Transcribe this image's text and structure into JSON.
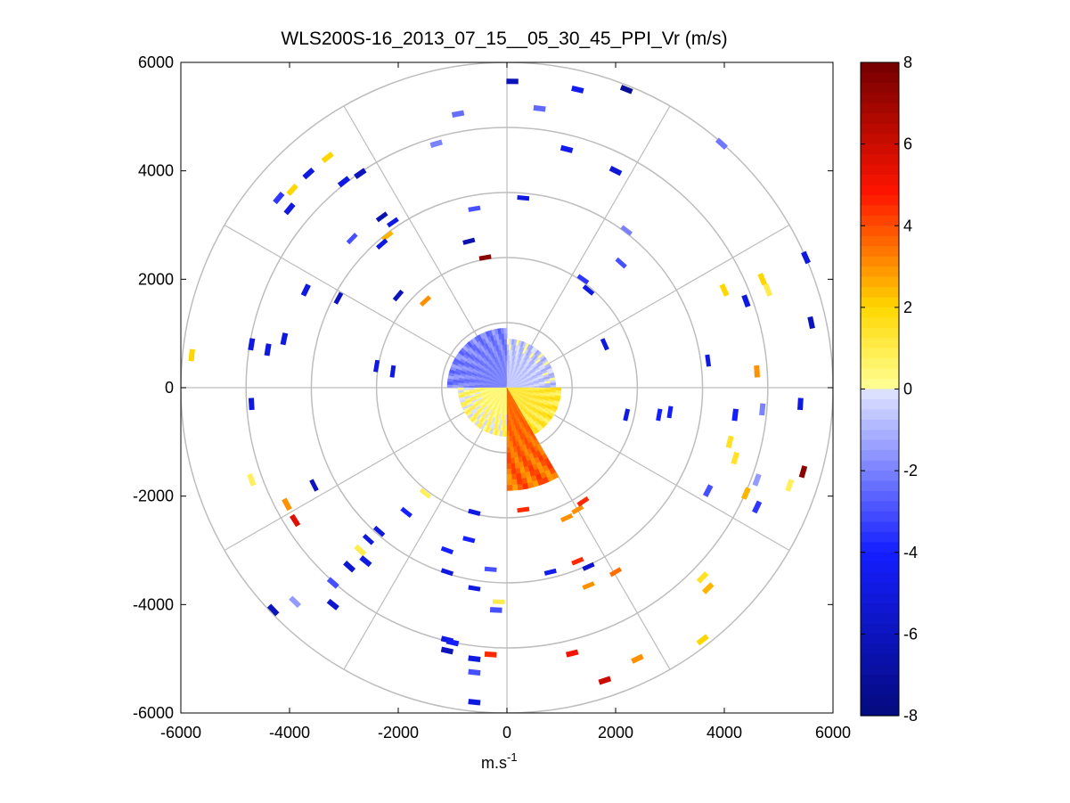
{
  "chart_data": {
    "type": "heatmap",
    "subtype": "polar-ppi-scan",
    "title": "WLS200S-16_2013_07_15__05_30_45_PPI_Vr (m/s)",
    "xlabel_main": "m.s",
    "xlabel_sup": "-1",
    "ylabel": "",
    "xlim": [
      -6000,
      6000
    ],
    "ylim": [
      -6000,
      6000
    ],
    "xticks": [
      -6000,
      -4000,
      -2000,
      0,
      2000,
      4000,
      6000
    ],
    "yticks": [
      -6000,
      -4000,
      -2000,
      0,
      2000,
      4000,
      6000
    ],
    "xtick_labels": [
      "-6000",
      "-4000",
      "-2000",
      "0",
      "2000",
      "4000",
      "6000"
    ],
    "ytick_labels": [
      "-6000",
      "-4000",
      "-2000",
      "0",
      "2000",
      "4000",
      "6000"
    ],
    "polar_grid": {
      "ring_radii": [
        1200,
        2400,
        3600,
        4800,
        6000
      ],
      "spoke_angles_deg": [
        0,
        30,
        60,
        90,
        120,
        150,
        180,
        210,
        240,
        270,
        300,
        330
      ]
    },
    "colorbar": {
      "range": [
        -8,
        8
      ],
      "ticks": [
        -8,
        -6,
        -4,
        -2,
        0,
        2,
        4,
        6,
        8
      ],
      "tick_labels": [
        "-8",
        "-6",
        "-4",
        "-2",
        "0",
        "2",
        "4",
        "6",
        "8"
      ],
      "colormap": "blue-white-yellow-red"
    },
    "near_field": {
      "description": "dense returns within ~1100 m of the lidar",
      "sectors": [
        {
          "az_from": 270,
          "az_to": 360,
          "r_max": 1100,
          "vr": -2.0
        },
        {
          "az_from": 0,
          "az_to": 90,
          "r_max": 900,
          "vr": -0.6
        },
        {
          "az_from": 90,
          "az_to": 180,
          "r_max": 1000,
          "vr": 1.2
        },
        {
          "az_from": 180,
          "az_to": 270,
          "r_max": 900,
          "vr": 0.4
        },
        {
          "az_from": 150,
          "az_to": 180,
          "r_max": 1900,
          "vr": 3.6
        }
      ]
    },
    "gates": [
      {
        "x": 100,
        "y": 5650,
        "vr": -6.2
      },
      {
        "x": 1300,
        "y": 5500,
        "vr": -4.5
      },
      {
        "x": 2200,
        "y": 5500,
        "vr": -7.2
      },
      {
        "x": 600,
        "y": 5150,
        "vr": -2.5
      },
      {
        "x": -900,
        "y": 5050,
        "vr": -2.4
      },
      {
        "x": 1100,
        "y": 4400,
        "vr": -4.6
      },
      {
        "x": 2000,
        "y": 4000,
        "vr": -5.2
      },
      {
        "x": 3950,
        "y": 4500,
        "vr": -2.2
      },
      {
        "x": -1300,
        "y": 4500,
        "vr": -2.0
      },
      {
        "x": -3300,
        "y": 4250,
        "vr": 2.0
      },
      {
        "x": -3650,
        "y": 3950,
        "vr": -5.0
      },
      {
        "x": -3950,
        "y": 3650,
        "vr": 2.0
      },
      {
        "x": -4200,
        "y": 3500,
        "vr": -3.5
      },
      {
        "x": -4000,
        "y": 3300,
        "vr": -5.0
      },
      {
        "x": -3000,
        "y": 3800,
        "vr": -5.0
      },
      {
        "x": -2700,
        "y": 3950,
        "vr": -6.0
      },
      {
        "x": 300,
        "y": 3500,
        "vr": -5.0
      },
      {
        "x": -600,
        "y": 3300,
        "vr": -3.0
      },
      {
        "x": -2300,
        "y": 3150,
        "vr": -6.5
      },
      {
        "x": -2100,
        "y": 3050,
        "vr": -5.0
      },
      {
        "x": 2200,
        "y": 2900,
        "vr": -2.0
      },
      {
        "x": -2850,
        "y": 2750,
        "vr": -3.0
      },
      {
        "x": -2200,
        "y": 2800,
        "vr": 2.5
      },
      {
        "x": -2300,
        "y": 2650,
        "vr": -5.0
      },
      {
        "x": -700,
        "y": 2700,
        "vr": -6.5
      },
      {
        "x": -400,
        "y": 2400,
        "vr": 7.5
      },
      {
        "x": 2100,
        "y": 2300,
        "vr": -3.0
      },
      {
        "x": 1400,
        "y": 2000,
        "vr": -3.5
      },
      {
        "x": 1500,
        "y": 1800,
        "vr": -5.0
      },
      {
        "x": 5500,
        "y": 2400,
        "vr": -5.0
      },
      {
        "x": 4700,
        "y": 2000,
        "vr": 2.0
      },
      {
        "x": 4800,
        "y": 1800,
        "vr": 1.0
      },
      {
        "x": 4000,
        "y": 1800,
        "vr": 2.0
      },
      {
        "x": 4400,
        "y": 1600,
        "vr": -5.0
      },
      {
        "x": 5600,
        "y": 1200,
        "vr": -6.0
      },
      {
        "x": -3700,
        "y": 1800,
        "vr": -5.0
      },
      {
        "x": -3100,
        "y": 1650,
        "vr": -6.0
      },
      {
        "x": -2000,
        "y": 1700,
        "vr": -6.0
      },
      {
        "x": -1500,
        "y": 1600,
        "vr": 3.0
      },
      {
        "x": -5800,
        "y": 600,
        "vr": 2.0
      },
      {
        "x": -4700,
        "y": 800,
        "vr": -5.0
      },
      {
        "x": -4400,
        "y": 700,
        "vr": -5.0
      },
      {
        "x": -4100,
        "y": 900,
        "vr": -5.0
      },
      {
        "x": -2400,
        "y": 400,
        "vr": -5.0
      },
      {
        "x": -2100,
        "y": 300,
        "vr": -5.0
      },
      {
        "x": 3700,
        "y": 500,
        "vr": -5.0
      },
      {
        "x": 4600,
        "y": 300,
        "vr": 3.0
      },
      {
        "x": 1800,
        "y": 800,
        "vr": -5.0
      },
      {
        "x": 5400,
        "y": -300,
        "vr": -5.0
      },
      {
        "x": 4700,
        "y": -400,
        "vr": -2.0
      },
      {
        "x": 4200,
        "y": -500,
        "vr": -4.0
      },
      {
        "x": 3000,
        "y": -450,
        "vr": -4.0
      },
      {
        "x": 2800,
        "y": -500,
        "vr": -4.0
      },
      {
        "x": 2200,
        "y": -500,
        "vr": -5.0
      },
      {
        "x": -4700,
        "y": -300,
        "vr": -5.0
      },
      {
        "x": 4100,
        "y": -1000,
        "vr": 1.5
      },
      {
        "x": 4200,
        "y": -1300,
        "vr": 1.5
      },
      {
        "x": 5450,
        "y": -1550,
        "vr": 7.5
      },
      {
        "x": 5200,
        "y": -1800,
        "vr": 0.8
      },
      {
        "x": 4600,
        "y": -1700,
        "vr": -1.5
      },
      {
        "x": 4400,
        "y": -1950,
        "vr": 2.5
      },
      {
        "x": 3700,
        "y": -1900,
        "vr": -3.0
      },
      {
        "x": 4600,
        "y": -2200,
        "vr": -3.5
      },
      {
        "x": -4700,
        "y": -1700,
        "vr": 0.8
      },
      {
        "x": -4050,
        "y": -2150,
        "vr": 3.0
      },
      {
        "x": -3900,
        "y": -2450,
        "vr": 5.5
      },
      {
        "x": -3550,
        "y": -1800,
        "vr": -6.0
      },
      {
        "x": -2550,
        "y": -2800,
        "vr": -5.0
      },
      {
        "x": -2350,
        "y": -2650,
        "vr": -5.0
      },
      {
        "x": -1850,
        "y": -2300,
        "vr": -4.0
      },
      {
        "x": -1500,
        "y": -1950,
        "vr": 0.8
      },
      {
        "x": -2700,
        "y": -3000,
        "vr": 1.0
      },
      {
        "x": -2600,
        "y": -3200,
        "vr": -5.0
      },
      {
        "x": -2900,
        "y": -3300,
        "vr": -5.5
      },
      {
        "x": -3200,
        "y": -3600,
        "vr": -3.0
      },
      {
        "x": -4300,
        "y": -4100,
        "vr": -6.0
      },
      {
        "x": -3900,
        "y": -3950,
        "vr": -1.5
      },
      {
        "x": -3200,
        "y": -4000,
        "vr": -5.5
      },
      {
        "x": -700,
        "y": -2800,
        "vr": -4.0
      },
      {
        "x": -1100,
        "y": -3000,
        "vr": -4.0
      },
      {
        "x": -600,
        "y": -2300,
        "vr": -5.0
      },
      {
        "x": 300,
        "y": -2250,
        "vr": 4.5
      },
      {
        "x": 1300,
        "y": -2250,
        "vr": 3.0
      },
      {
        "x": 1400,
        "y": -2100,
        "vr": 4.5
      },
      {
        "x": 1100,
        "y": -2400,
        "vr": 3.0
      },
      {
        "x": 1300,
        "y": -3200,
        "vr": 4.5
      },
      {
        "x": 1500,
        "y": -3300,
        "vr": -5.5
      },
      {
        "x": 800,
        "y": -3400,
        "vr": -4.5
      },
      {
        "x": 2000,
        "y": -3400,
        "vr": 3.5
      },
      {
        "x": 1500,
        "y": -3650,
        "vr": 3.0
      },
      {
        "x": 3600,
        "y": -3500,
        "vr": 1.5
      },
      {
        "x": 3700,
        "y": -3700,
        "vr": 2.5
      },
      {
        "x": -600,
        "y": -3700,
        "vr": -5.0
      },
      {
        "x": -1100,
        "y": -3400,
        "vr": -5.0
      },
      {
        "x": -300,
        "y": -3350,
        "vr": -3.0
      },
      {
        "x": -150,
        "y": -3950,
        "vr": 1.0
      },
      {
        "x": -200,
        "y": -4100,
        "vr": -3.0
      },
      {
        "x": -1100,
        "y": -4650,
        "vr": -5.0
      },
      {
        "x": -1000,
        "y": -4700,
        "vr": -4.0
      },
      {
        "x": -600,
        "y": -5000,
        "vr": -5.0
      },
      {
        "x": -1100,
        "y": -4850,
        "vr": -6.0
      },
      {
        "x": -600,
        "y": -5250,
        "vr": -3.0
      },
      {
        "x": -300,
        "y": -4920,
        "vr": 4.5
      },
      {
        "x": -600,
        "y": -5800,
        "vr": -5.0
      },
      {
        "x": 1200,
        "y": -4900,
        "vr": 5.0
      },
      {
        "x": 1800,
        "y": -5400,
        "vr": 6.0
      },
      {
        "x": 2400,
        "y": -5000,
        "vr": 3.0
      },
      {
        "x": 3600,
        "y": -4650,
        "vr": 2.0
      }
    ]
  }
}
